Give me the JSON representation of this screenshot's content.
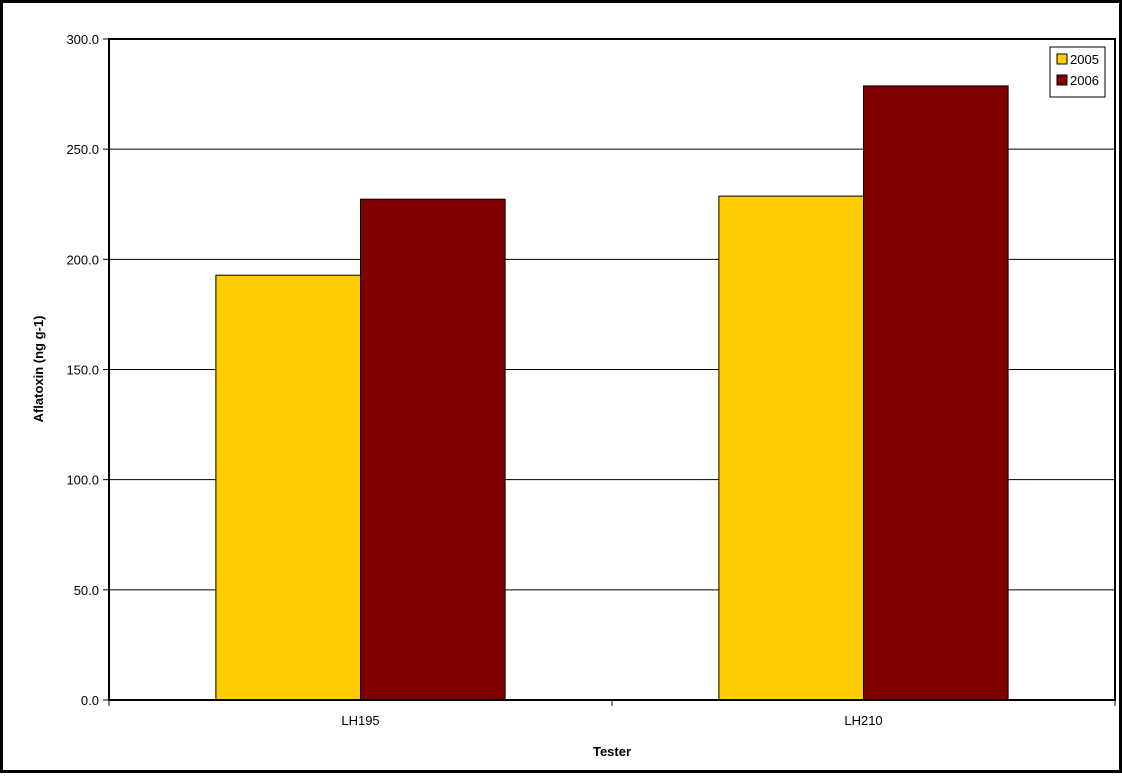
{
  "chart_data": {
    "type": "bar",
    "title": "",
    "xlabel": "Tester",
    "ylabel": "Aflatoxin (ng g-1)",
    "categories": [
      "LH195",
      "LH210"
    ],
    "series": [
      {
        "name": "2005",
        "values": [
          192.8,
          228.7
        ],
        "color": "#FFCC00"
      },
      {
        "name": "2006",
        "values": [
          227.3,
          278.7
        ],
        "color": "#800000"
      }
    ],
    "ylim": [
      0,
      300
    ],
    "yticks": [
      "0.0",
      "50.0",
      "100.0",
      "150.0",
      "200.0",
      "250.0",
      "300.0"
    ],
    "grid": true,
    "legend_position": "top-right"
  }
}
